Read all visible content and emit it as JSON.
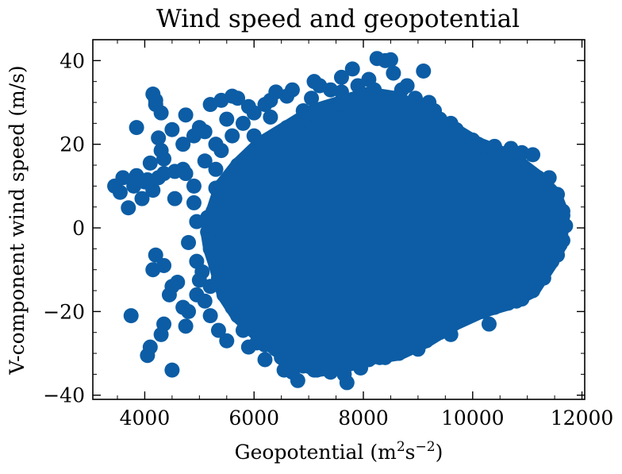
{
  "chart_data": {
    "type": "scatter",
    "title": "Wind speed and geopotential",
    "xlabel": "Geopotential (m",
    "xlabel_sup1": "2",
    "xlabel_mid": "s",
    "xlabel_sup2": "−2",
    "xlabel_end": ")",
    "ylabel": "V-component wind speed (m/s)",
    "xlim": [
      3050,
      12050
    ],
    "ylim": [
      -41,
      45
    ],
    "x_ticks": [
      4000,
      6000,
      8000,
      10000,
      12000
    ],
    "x_tick_labels": [
      "4000",
      "6000",
      "8000",
      "10000",
      "12000"
    ],
    "y_ticks": [
      -40,
      -20,
      0,
      20,
      40
    ],
    "y_tick_labels": [
      "−40",
      "−20",
      "0",
      "20",
      "40"
    ],
    "marker_color": "#0c5da5",
    "grid": false,
    "dense_core": [
      [
        5150,
        -1
      ],
      [
        5350,
        -12
      ],
      [
        5350,
        8
      ],
      [
        5600,
        -19
      ],
      [
        5600,
        12
      ],
      [
        5950,
        -24
      ],
      [
        6000,
        18
      ],
      [
        6400,
        -29
      ],
      [
        6400,
        22
      ],
      [
        6900,
        -33
      ],
      [
        6900,
        26
      ],
      [
        7400,
        -34
      ],
      [
        7400,
        29
      ],
      [
        7900,
        -32
      ],
      [
        7900,
        31
      ],
      [
        8400,
        -31
      ],
      [
        8400,
        31
      ],
      [
        8900,
        -28
      ],
      [
        8900,
        29
      ],
      [
        9400,
        -25
      ],
      [
        9400,
        26
      ],
      [
        9900,
        -21
      ],
      [
        9900,
        21
      ],
      [
        10400,
        -19
      ],
      [
        10400,
        18
      ],
      [
        10900,
        -17
      ],
      [
        10900,
        15
      ],
      [
        11300,
        -12
      ],
      [
        11300,
        10
      ],
      [
        11600,
        -4
      ],
      [
        11650,
        3
      ],
      [
        11500,
        8
      ],
      [
        11200,
        12
      ],
      [
        10700,
        17
      ],
      [
        10100,
        20
      ],
      [
        9600,
        24
      ],
      [
        9100,
        28
      ],
      [
        8600,
        31
      ],
      [
        8100,
        32
      ],
      [
        7600,
        30
      ],
      [
        7100,
        28
      ],
      [
        6600,
        24
      ],
      [
        6100,
        20
      ],
      [
        5700,
        15
      ],
      [
        5400,
        10
      ],
      [
        5250,
        4
      ],
      [
        5200,
        -5
      ],
      [
        5300,
        -9
      ],
      [
        5450,
        -16
      ],
      [
        5700,
        -21
      ],
      [
        6100,
        -26
      ],
      [
        6600,
        -31
      ],
      [
        7150,
        -34
      ],
      [
        7650,
        -33
      ],
      [
        8150,
        -31
      ],
      [
        8650,
        -30
      ],
      [
        9150,
        -27
      ],
      [
        9650,
        -23
      ],
      [
        10150,
        -20
      ],
      [
        10650,
        -18
      ],
      [
        11100,
        -15
      ],
      [
        11450,
        -8
      ]
    ],
    "points": [
      [
        3450,
        10
      ],
      [
        3550,
        8.5
      ],
      [
        3600,
        12
      ],
      [
        3700,
        4.8
      ],
      [
        3800,
        10
      ],
      [
        3850,
        24
      ],
      [
        3850,
        12.5
      ],
      [
        3950,
        7
      ],
      [
        4000,
        11
      ],
      [
        4050,
        11.5
      ],
      [
        4100,
        15.5
      ],
      [
        4150,
        9
      ],
      [
        4150,
        32
      ],
      [
        4200,
        29.5
      ],
      [
        4200,
        30.5
      ],
      [
        4250,
        12
      ],
      [
        4250,
        21.5
      ],
      [
        4300,
        27.5
      ],
      [
        4300,
        18.5
      ],
      [
        4350,
        13
      ],
      [
        4350,
        16.5
      ],
      [
        4500,
        23.5
      ],
      [
        4550,
        13.5
      ],
      [
        4550,
        7
      ],
      [
        4700,
        14
      ],
      [
        4750,
        27
      ],
      [
        4750,
        13
      ],
      [
        4700,
        20
      ],
      [
        4900,
        22
      ],
      [
        4950,
        1.5
      ],
      [
        5000,
        24
      ],
      [
        5100,
        23
      ],
      [
        5200,
        29.5
      ],
      [
        5300,
        9.5
      ],
      [
        5300,
        14
      ],
      [
        5400,
        30.5
      ],
      [
        5500,
        26
      ],
      [
        5600,
        31.5
      ],
      [
        5700,
        31
      ],
      [
        5900,
        29
      ],
      [
        6000,
        27.5
      ],
      [
        6200,
        29.5
      ],
      [
        6300,
        30.5
      ],
      [
        6400,
        32.5
      ],
      [
        6600,
        31.5
      ],
      [
        6700,
        33
      ],
      [
        6900,
        28
      ],
      [
        7100,
        35
      ],
      [
        7200,
        34
      ],
      [
        7400,
        33
      ],
      [
        7600,
        32.5
      ],
      [
        7800,
        38
      ],
      [
        7900,
        34
      ],
      [
        8100,
        35.5
      ],
      [
        8250,
        40.5
      ],
      [
        8400,
        40
      ],
      [
        8500,
        40.2
      ],
      [
        8550,
        37
      ],
      [
        8700,
        33
      ],
      [
        8950,
        31
      ],
      [
        9100,
        37.5
      ],
      [
        9300,
        28
      ],
      [
        9600,
        25
      ],
      [
        10000,
        21
      ],
      [
        10400,
        19.5
      ],
      [
        10700,
        19
      ],
      [
        10900,
        18
      ],
      [
        11100,
        17.5
      ],
      [
        11400,
        12
      ],
      [
        11550,
        8
      ],
      [
        11650,
        4
      ],
      [
        11700,
        0.5
      ],
      [
        11650,
        -3
      ],
      [
        11550,
        -6.5
      ],
      [
        11300,
        -10
      ],
      [
        11000,
        -14
      ],
      [
        10800,
        -17.5
      ],
      [
        10500,
        -18
      ],
      [
        10200,
        -20
      ],
      [
        9900,
        -21
      ],
      [
        9600,
        -25.5
      ],
      [
        9300,
        -23
      ],
      [
        9100,
        -27
      ],
      [
        8800,
        -26
      ],
      [
        8500,
        -29
      ],
      [
        8300,
        -31
      ],
      [
        8100,
        -31.5
      ],
      [
        7950,
        -33.5
      ],
      [
        7750,
        -27.5
      ],
      [
        7700,
        -37
      ],
      [
        7650,
        -35
      ],
      [
        7400,
        -34.5
      ],
      [
        7300,
        -32.5
      ],
      [
        7100,
        -34
      ],
      [
        6900,
        -33
      ],
      [
        6800,
        -36.5
      ],
      [
        6700,
        -34.5
      ],
      [
        6600,
        -32
      ],
      [
        6550,
        -34
      ],
      [
        6500,
        -31
      ],
      [
        6200,
        -31.5
      ],
      [
        6200,
        -28
      ],
      [
        6050,
        -27.5
      ],
      [
        5900,
        -28.5
      ],
      [
        5800,
        -24.5
      ],
      [
        5500,
        -27
      ],
      [
        5350,
        -24.5
      ],
      [
        5200,
        -21
      ],
      [
        5100,
        -17.5
      ],
      [
        4950,
        -16
      ],
      [
        4800,
        -20
      ],
      [
        4750,
        -23.5
      ],
      [
        4700,
        -19
      ],
      [
        4600,
        -13
      ],
      [
        4500,
        -14
      ],
      [
        4450,
        -16
      ],
      [
        4350,
        -23
      ],
      [
        4300,
        -25.5
      ],
      [
        4200,
        -6.5
      ],
      [
        4150,
        -10
      ],
      [
        4350,
        -9
      ],
      [
        4100,
        -28.5
      ],
      [
        4050,
        -30.5
      ],
      [
        4500,
        -34
      ],
      [
        3750,
        -21
      ],
      [
        4800,
        -3.5
      ],
      [
        4950,
        -8
      ],
      [
        5050,
        -10.5
      ],
      [
        5000,
        -12.5
      ],
      [
        4900,
        6
      ],
      [
        5150,
        2.5
      ],
      [
        5400,
        18.5
      ],
      [
        5300,
        20
      ],
      [
        5600,
        22
      ],
      [
        5800,
        25
      ],
      [
        6300,
        26.5
      ],
      [
        6800,
        25
      ],
      [
        7050,
        31
      ],
      [
        7600,
        36
      ],
      [
        8200,
        33
      ],
      [
        8800,
        34
      ],
      [
        9200,
        30
      ],
      [
        9700,
        23.5
      ],
      [
        10100,
        16
      ],
      [
        10600,
        14
      ],
      [
        11200,
        -12
      ],
      [
        10900,
        -4
      ],
      [
        10300,
        -23
      ],
      [
        9000,
        -29
      ],
      [
        8000,
        -29
      ],
      [
        6300,
        -25
      ],
      [
        5700,
        -17
      ],
      [
        5200,
        -14
      ],
      [
        4900,
        10
      ],
      [
        5100,
        16
      ],
      [
        6000,
        22
      ]
    ]
  }
}
